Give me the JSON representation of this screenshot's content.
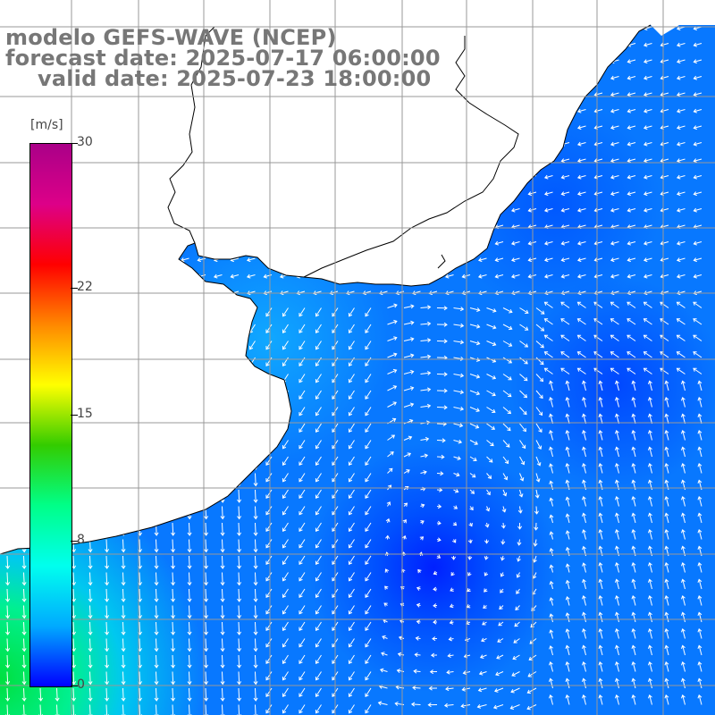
{
  "title": {
    "line1": "modelo GEFS-WAVE (NCEP)",
    "line2": "forecast date: 2025-07-17 06:00:00",
    "line3": "valid date: 2025-07-23 18:00:00"
  },
  "colorbar": {
    "units": "[m/s]",
    "ticks": [
      "30",
      "22",
      "15",
      "8",
      "0"
    ],
    "tick_values": [
      30,
      22,
      15,
      8,
      0
    ],
    "range": [
      0,
      30
    ],
    "colors": [
      "#0000ff",
      "#00aaff",
      "#00ffee",
      "#00ff88",
      "#33cc00",
      "#ffff00",
      "#ff8800",
      "#ff0000",
      "#dd0088",
      "#aa0088"
    ]
  },
  "map": {
    "field": "wind speed and direction",
    "land_color": "#ffffff",
    "grid_color": "#999999",
    "coast_color": "#000000",
    "arrow_color": "#ffffff"
  }
}
